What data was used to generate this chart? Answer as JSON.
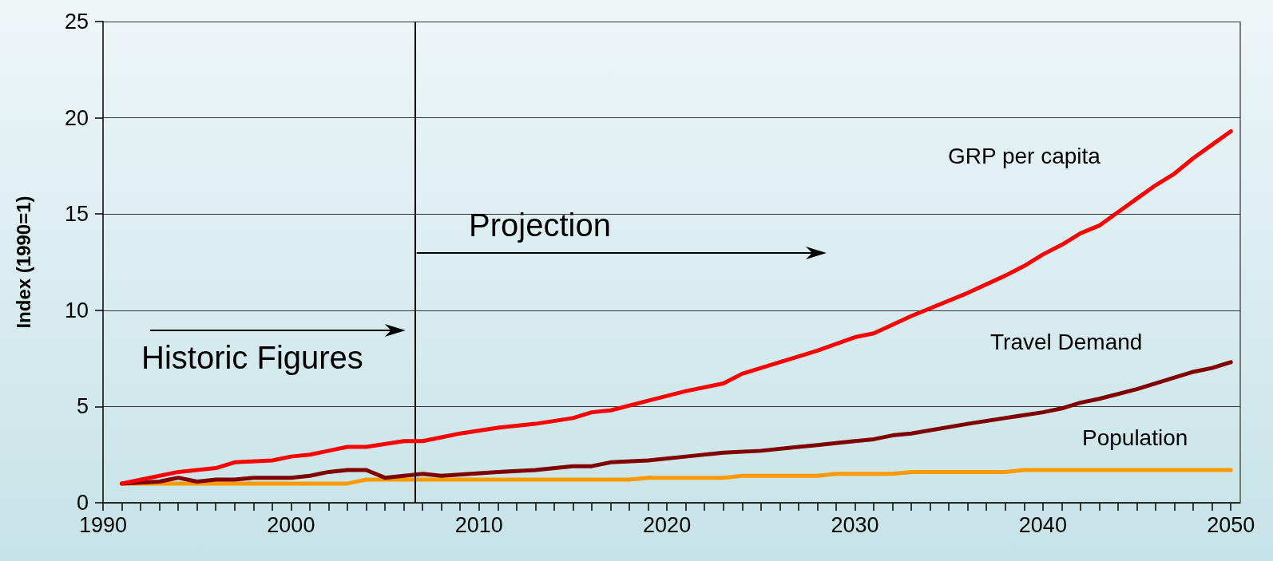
{
  "chart_data": {
    "type": "line",
    "ylabel": "Index (1990=1)",
    "xlim": [
      1990,
      2050.5
    ],
    "ylim": [
      0,
      25
    ],
    "yticks": [
      0,
      5,
      10,
      15,
      20,
      25
    ],
    "xticks": [
      1990,
      {
        "value": 1991,
        "label": null
      },
      {
        "value": 1992,
        "label": null
      },
      {
        "value": 1993,
        "label": null
      },
      {
        "value": 1994,
        "label": null
      },
      {
        "value": 1995,
        "label": null
      },
      {
        "value": 1996,
        "label": null
      },
      {
        "value": 1997,
        "label": null
      },
      {
        "value": 1998,
        "label": null
      },
      {
        "value": 1999,
        "label": null
      },
      2000,
      {
        "value": 2001,
        "label": null
      },
      {
        "value": 2002,
        "label": null
      },
      {
        "value": 2003,
        "label": null
      },
      {
        "value": 2004,
        "label": null
      },
      {
        "value": 2005,
        "label": null
      },
      {
        "value": 2006,
        "label": null
      },
      {
        "value": 2007,
        "label": null
      },
      {
        "value": 2008,
        "label": null
      },
      {
        "value": 2009,
        "label": null
      },
      2010,
      {
        "value": 2011,
        "label": null
      },
      {
        "value": 2012,
        "label": null
      },
      {
        "value": 2013,
        "label": null
      },
      {
        "value": 2014,
        "label": null
      },
      {
        "value": 2015,
        "label": null
      },
      {
        "value": 2016,
        "label": null
      },
      {
        "value": 2017,
        "label": null
      },
      {
        "value": 2018,
        "label": null
      },
      {
        "value": 2019,
        "label": null
      },
      2020,
      {
        "value": 2021,
        "label": null
      },
      {
        "value": 2022,
        "label": null
      },
      {
        "value": 2023,
        "label": null
      },
      {
        "value": 2024,
        "label": null
      },
      {
        "value": 2025,
        "label": null
      },
      {
        "value": 2026,
        "label": null
      },
      {
        "value": 2027,
        "label": null
      },
      {
        "value": 2028,
        "label": null
      },
      {
        "value": 2029,
        "label": null
      },
      2030,
      {
        "value": 2031,
        "label": null
      },
      {
        "value": 2032,
        "label": null
      },
      {
        "value": 2033,
        "label": null
      },
      {
        "value": 2034,
        "label": null
      },
      {
        "value": 2035,
        "label": null
      },
      {
        "value": 2036,
        "label": null
      },
      {
        "value": 2037,
        "label": null
      },
      {
        "value": 2038,
        "label": null
      },
      {
        "value": 2039,
        "label": null
      },
      2040,
      {
        "value": 2041,
        "label": null
      },
      {
        "value": 2042,
        "label": null
      },
      {
        "value": 2043,
        "label": null
      },
      {
        "value": 2044,
        "label": null
      },
      {
        "value": 2045,
        "label": null
      },
      {
        "value": 2046,
        "label": null
      },
      {
        "value": 2047,
        "label": null
      },
      {
        "value": 2048,
        "label": null
      },
      {
        "value": 2049,
        "label": null
      },
      2050
    ],
    "grid": "y",
    "legend": false,
    "marker": "none",
    "line_style": "solid",
    "annotations": [
      "Historic Figures",
      "Projection"
    ],
    "ref_lines": [
      {
        "axis": "x",
        "value": 2006.6,
        "color": "#000000"
      }
    ],
    "series": [
      {
        "name": "GRP per capita",
        "color": "#ff0000",
        "x": [
          1991,
          1993,
          1994,
          1996,
          1997,
          1999,
          2000,
          2001,
          2002,
          2003,
          2004,
          2006,
          2007,
          2008,
          2009,
          2011,
          2013,
          2015,
          2016,
          2017,
          2019,
          2021,
          2023,
          2024,
          2025,
          2026,
          2028,
          2030,
          2031,
          2033,
          2036,
          2038,
          2039,
          2040,
          2041,
          2042,
          2043,
          2044,
          2045,
          2046,
          2047,
          2048,
          2049,
          2050
        ],
        "values": [
          1.0,
          1.4,
          1.6,
          1.8,
          2.1,
          2.2,
          2.4,
          2.5,
          2.7,
          2.9,
          2.9,
          3.2,
          3.2,
          3.4,
          3.6,
          3.9,
          4.1,
          4.4,
          4.7,
          4.8,
          5.3,
          5.8,
          6.2,
          6.7,
          7.0,
          7.3,
          7.9,
          8.6,
          8.8,
          9.7,
          10.9,
          11.8,
          12.3,
          12.9,
          13.4,
          14.0,
          14.4,
          15.1,
          15.8,
          16.5,
          17.1,
          17.9,
          18.6,
          19.3
        ]
      },
      {
        "name": "Travel Demand",
        "color": "#800000",
        "x": [
          1991,
          1993,
          1994,
          1995,
          1996,
          1997,
          1998,
          2000,
          2001,
          2002,
          2003,
          2004,
          2005,
          2006,
          2007,
          2008,
          2011,
          2013,
          2015,
          2016,
          2017,
          2019,
          2021,
          2023,
          2025,
          2027,
          2029,
          2030,
          2031,
          2032,
          2033,
          2036,
          2040,
          2041,
          2042,
          2043,
          2045,
          2047,
          2048,
          2049,
          2050
        ],
        "values": [
          1.0,
          1.1,
          1.3,
          1.1,
          1.2,
          1.2,
          1.3,
          1.3,
          1.4,
          1.6,
          1.7,
          1.7,
          1.3,
          1.4,
          1.5,
          1.4,
          1.6,
          1.7,
          1.9,
          1.9,
          2.1,
          2.2,
          2.4,
          2.6,
          2.7,
          2.9,
          3.1,
          3.2,
          3.3,
          3.5,
          3.6,
          4.1,
          4.7,
          4.9,
          5.2,
          5.4,
          5.9,
          6.5,
          6.8,
          7.0,
          7.3
        ]
      },
      {
        "name": "Population",
        "color": "#ff9900",
        "x": [
          1991,
          1993,
          2003,
          2004,
          2013,
          2014,
          2018,
          2019,
          2023,
          2024,
          2028,
          2029,
          2032,
          2033,
          2038,
          2039,
          2048,
          2049,
          2050
        ],
        "values": [
          1.0,
          1.0,
          1.0,
          1.2,
          1.2,
          1.2,
          1.2,
          1.3,
          1.3,
          1.4,
          1.4,
          1.5,
          1.5,
          1.6,
          1.6,
          1.7,
          1.7,
          1.7,
          1.7
        ]
      }
    ]
  }
}
